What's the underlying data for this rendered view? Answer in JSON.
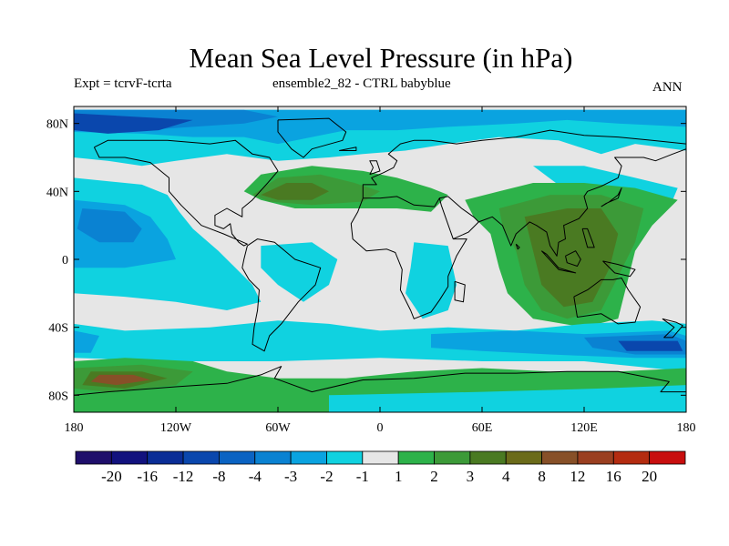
{
  "title": "Mean Sea Level Pressure (in hPa)",
  "subtitle_left": "Expt = tcrvF-tcrta",
  "subtitle_center": "ensemble2_82 - CTRL babyblue",
  "subtitle_right": "ANN",
  "map": {
    "projection": "cylindrical-equidistant",
    "lon_range": [
      -180,
      180
    ],
    "lat_range": [
      -90,
      90
    ],
    "lat_ticks": [
      {
        "lat": 80,
        "label": "80N"
      },
      {
        "lat": 40,
        "label": "40N"
      },
      {
        "lat": 0,
        "label": "0"
      },
      {
        "lat": -40,
        "label": "40S"
      },
      {
        "lat": -80,
        "label": "80S"
      }
    ],
    "lon_ticks": [
      {
        "lon": -180,
        "label": "180"
      },
      {
        "lon": -120,
        "label": "120W"
      },
      {
        "lon": -60,
        "label": "60W"
      },
      {
        "lon": 0,
        "label": "0"
      },
      {
        "lon": 60,
        "label": "60E"
      },
      {
        "lon": 120,
        "label": "120E"
      },
      {
        "lon": 180,
        "label": "180"
      }
    ]
  },
  "colorbar": {
    "colors": [
      "#1f0f6b",
      "#12127e",
      "#0a2d96",
      "#0a47ad",
      "#0b63c2",
      "#0a82d2",
      "#0aa3e0",
      "#10d2e0",
      "#e6e6e6",
      "#2db24a",
      "#3c9a38",
      "#4a7a22",
      "#6b6b1a",
      "#875028",
      "#9a3f20",
      "#b42c10",
      "#c80e0e"
    ],
    "labels": [
      "-20",
      "-16",
      "-12",
      "-8",
      "-4",
      "-3",
      "-2",
      "-1",
      "1",
      "2",
      "3",
      "4",
      "8",
      "12",
      "16",
      "20"
    ]
  },
  "regions": [
    {
      "name": "neutral",
      "color": "#e6e6e6",
      "pts": [
        [
          -180,
          90
        ],
        [
          180,
          90
        ],
        [
          180,
          -90
        ],
        [
          -180,
          -90
        ]
      ]
    },
    {
      "name": "north-pacific-atlantic-low",
      "color": "#10d2e0",
      "pts": [
        [
          -180,
          88
        ],
        [
          180,
          88
        ],
        [
          180,
          64
        ],
        [
          150,
          68
        ],
        [
          130,
          62
        ],
        [
          105,
          70
        ],
        [
          70,
          72
        ],
        [
          40,
          68
        ],
        [
          15,
          64
        ],
        [
          -10,
          62
        ],
        [
          -30,
          60
        ],
        [
          -60,
          58
        ],
        [
          -90,
          62
        ],
        [
          -120,
          58
        ],
        [
          -140,
          55
        ],
        [
          -160,
          58
        ],
        [
          -180,
          60
        ]
      ]
    },
    {
      "name": "arctic-low-2",
      "color": "#0aa3e0",
      "pts": [
        [
          -180,
          88
        ],
        [
          180,
          88
        ],
        [
          180,
          78
        ],
        [
          140,
          80
        ],
        [
          110,
          82
        ],
        [
          80,
          80
        ],
        [
          40,
          78
        ],
        [
          10,
          76
        ],
        [
          -20,
          76
        ],
        [
          -40,
          72
        ],
        [
          -60,
          68
        ],
        [
          -80,
          72
        ],
        [
          -110,
          72
        ],
        [
          -140,
          74
        ],
        [
          -180,
          75
        ]
      ]
    },
    {
      "name": "arctic-low-3",
      "color": "#0a82d2",
      "pts": [
        [
          -180,
          88
        ],
        [
          -80,
          88
        ],
        [
          -60,
          84
        ],
        [
          -80,
          80
        ],
        [
          -110,
          78
        ],
        [
          -140,
          76
        ],
        [
          -180,
          78
        ]
      ]
    },
    {
      "name": "arctic-low-4",
      "color": "#0a47ad",
      "pts": [
        [
          -180,
          86
        ],
        [
          -110,
          82
        ],
        [
          -130,
          76
        ],
        [
          -160,
          74
        ],
        [
          -180,
          76
        ]
      ]
    },
    {
      "name": "east-asia-pos",
      "color": "#10d2e0",
      "pts": [
        [
          90,
          55
        ],
        [
          120,
          55
        ],
        [
          150,
          48
        ],
        [
          175,
          42
        ],
        [
          170,
          30
        ],
        [
          150,
          32
        ],
        [
          130,
          38
        ],
        [
          110,
          40
        ]
      ]
    },
    {
      "name": "north-pacific-neg",
      "color": "#10d2e0",
      "pts": [
        [
          -180,
          48
        ],
        [
          -140,
          44
        ],
        [
          -125,
          38
        ],
        [
          -118,
          28
        ],
        [
          -110,
          18
        ],
        [
          -95,
          5
        ],
        [
          -85,
          -5
        ],
        [
          -75,
          -15
        ],
        [
          -70,
          -25
        ],
        [
          -90,
          -30
        ],
        [
          -120,
          -25
        ],
        [
          -150,
          -22
        ],
        [
          -180,
          -20
        ]
      ]
    },
    {
      "name": "north-pacific-neg-2",
      "color": "#0aa3e0",
      "pts": [
        [
          -180,
          35
        ],
        [
          -150,
          32
        ],
        [
          -135,
          25
        ],
        [
          -125,
          12
        ],
        [
          -120,
          0
        ],
        [
          -150,
          -5
        ],
        [
          -180,
          -5
        ]
      ]
    },
    {
      "name": "central-pacific-neg-3",
      "color": "#0a82d2",
      "pts": [
        [
          -175,
          30
        ],
        [
          -150,
          28
        ],
        [
          -140,
          18
        ],
        [
          -145,
          10
        ],
        [
          -165,
          10
        ],
        [
          -178,
          18
        ]
      ]
    },
    {
      "name": "equatorial-atlantic-neg",
      "color": "#10d2e0",
      "pts": [
        [
          -70,
          8
        ],
        [
          -40,
          10
        ],
        [
          -25,
          0
        ],
        [
          -30,
          -15
        ],
        [
          -45,
          -25
        ],
        [
          -60,
          -15
        ],
        [
          -70,
          -5
        ]
      ]
    },
    {
      "name": "south-africa-neg",
      "color": "#10d2e0",
      "pts": [
        [
          20,
          10
        ],
        [
          40,
          8
        ],
        [
          45,
          -15
        ],
        [
          40,
          -30
        ],
        [
          25,
          -35
        ],
        [
          15,
          -20
        ],
        [
          18,
          -5
        ]
      ]
    },
    {
      "name": "atlantic-azores-high",
      "color": "#2db24a",
      "pts": [
        [
          -80,
          40
        ],
        [
          -70,
          50
        ],
        [
          -40,
          55
        ],
        [
          -10,
          52
        ],
        [
          10,
          48
        ],
        [
          30,
          42
        ],
        [
          40,
          38
        ],
        [
          30,
          28
        ],
        [
          10,
          30
        ],
        [
          -20,
          30
        ],
        [
          -50,
          30
        ],
        [
          -70,
          35
        ]
      ]
    },
    {
      "name": "atlantic-high-3",
      "color": "#3c9a38",
      "pts": [
        [
          -75,
          38
        ],
        [
          -60,
          48
        ],
        [
          -35,
          50
        ],
        [
          -15,
          45
        ],
        [
          0,
          40
        ],
        [
          -10,
          34
        ],
        [
          -40,
          32
        ],
        [
          -65,
          34
        ]
      ]
    },
    {
      "name": "atlantic-high-4",
      "color": "#4a7a22",
      "pts": [
        [
          -70,
          38
        ],
        [
          -55,
          45
        ],
        [
          -40,
          45
        ],
        [
          -30,
          40
        ],
        [
          -40,
          35
        ],
        [
          -60,
          35
        ]
      ]
    },
    {
      "name": "asia-indian-high",
      "color": "#2db24a",
      "pts": [
        [
          50,
          35
        ],
        [
          70,
          40
        ],
        [
          90,
          45
        ],
        [
          120,
          45
        ],
        [
          150,
          42
        ],
        [
          175,
          35
        ],
        [
          160,
          20
        ],
        [
          150,
          5
        ],
        [
          145,
          -15
        ],
        [
          140,
          -35
        ],
        [
          120,
          -40
        ],
        [
          90,
          -35
        ],
        [
          75,
          -20
        ],
        [
          70,
          -5
        ],
        [
          65,
          15
        ],
        [
          55,
          25
        ]
      ]
    },
    {
      "name": "asia-indian-high-3",
      "color": "#3c9a38",
      "pts": [
        [
          70,
          30
        ],
        [
          100,
          38
        ],
        [
          130,
          38
        ],
        [
          155,
          30
        ],
        [
          150,
          10
        ],
        [
          140,
          -10
        ],
        [
          130,
          -30
        ],
        [
          110,
          -35
        ],
        [
          95,
          -30
        ],
        [
          85,
          -15
        ],
        [
          80,
          5
        ],
        [
          72,
          20
        ]
      ]
    },
    {
      "name": "asia-indian-high-4",
      "color": "#4a7a22",
      "pts": [
        [
          85,
          25
        ],
        [
          110,
          30
        ],
        [
          130,
          30
        ],
        [
          140,
          15
        ],
        [
          135,
          -5
        ],
        [
          125,
          -25
        ],
        [
          108,
          -28
        ],
        [
          95,
          -15
        ],
        [
          90,
          5
        ]
      ]
    },
    {
      "name": "southern-ocean-neg",
      "color": "#10d2e0",
      "pts": [
        [
          -180,
          -38
        ],
        [
          -150,
          -42
        ],
        [
          -100,
          -40
        ],
        [
          -60,
          -36
        ],
        [
          -30,
          -38
        ],
        [
          0,
          -42
        ],
        [
          40,
          -40
        ],
        [
          80,
          -42
        ],
        [
          120,
          -38
        ],
        [
          160,
          -36
        ],
        [
          180,
          -38
        ],
        [
          180,
          -66
        ],
        [
          120,
          -60
        ],
        [
          60,
          -60
        ],
        [
          0,
          -58
        ],
        [
          -60,
          -60
        ],
        [
          -120,
          -60
        ],
        [
          -180,
          -58
        ]
      ]
    },
    {
      "name": "southern-ocean-neg-2",
      "color": "#0aa3e0",
      "pts": [
        [
          -180,
          -42
        ],
        [
          -165,
          -45
        ],
        [
          -170,
          -55
        ],
        [
          -180,
          -55
        ]
      ]
    },
    {
      "name": "southern-ocean-neg-3",
      "color": "#0aa3e0",
      "pts": [
        [
          30,
          -44
        ],
        [
          80,
          -42
        ],
        [
          120,
          -44
        ],
        [
          170,
          -42
        ],
        [
          180,
          -45
        ],
        [
          180,
          -58
        ],
        [
          150,
          -58
        ],
        [
          100,
          -56
        ],
        [
          60,
          -54
        ],
        [
          30,
          -52
        ]
      ]
    },
    {
      "name": "southern-ocean-neg-4",
      "color": "#0a82d2",
      "pts": [
        [
          120,
          -46
        ],
        [
          170,
          -44
        ],
        [
          180,
          -48
        ],
        [
          180,
          -56
        ],
        [
          150,
          -56
        ],
        [
          125,
          -52
        ]
      ]
    },
    {
      "name": "southern-ocean-neg-5",
      "color": "#0a47ad",
      "pts": [
        [
          140,
          -48
        ],
        [
          175,
          -48
        ],
        [
          178,
          -54
        ],
        [
          145,
          -54
        ]
      ]
    },
    {
      "name": "antarctic-high",
      "color": "#2db24a",
      "pts": [
        [
          -180,
          -60
        ],
        [
          -150,
          -58
        ],
        [
          -110,
          -60
        ],
        [
          -90,
          -66
        ],
        [
          -60,
          -70
        ],
        [
          -20,
          -70
        ],
        [
          20,
          -66
        ],
        [
          60,
          -64
        ],
        [
          100,
          -66
        ],
        [
          140,
          -66
        ],
        [
          180,
          -64
        ],
        [
          180,
          -90
        ],
        [
          -180,
          -90
        ]
      ]
    },
    {
      "name": "antarctic-high-3",
      "color": "#3c9a38",
      "pts": [
        [
          -180,
          -64
        ],
        [
          -140,
          -62
        ],
        [
          -110,
          -66
        ],
        [
          -120,
          -74
        ],
        [
          -160,
          -78
        ],
        [
          -180,
          -76
        ]
      ]
    },
    {
      "name": "antarctic-high-4",
      "color": "#4a7a22",
      "pts": [
        [
          -170,
          -66
        ],
        [
          -140,
          -66
        ],
        [
          -125,
          -70
        ],
        [
          -150,
          -76
        ],
        [
          -175,
          -74
        ]
      ]
    },
    {
      "name": "antarctic-high-8",
      "color": "#875028",
      "pts": [
        [
          -165,
          -68
        ],
        [
          -145,
          -68
        ],
        [
          -135,
          -71
        ],
        [
          -155,
          -74
        ],
        [
          -170,
          -72
        ]
      ]
    },
    {
      "name": "antarctic-cyan",
      "color": "#10d2e0",
      "pts": [
        [
          -30,
          -80
        ],
        [
          60,
          -78
        ],
        [
          130,
          -76
        ],
        [
          180,
          -74
        ],
        [
          180,
          -90
        ],
        [
          -30,
          -90
        ]
      ]
    }
  ]
}
